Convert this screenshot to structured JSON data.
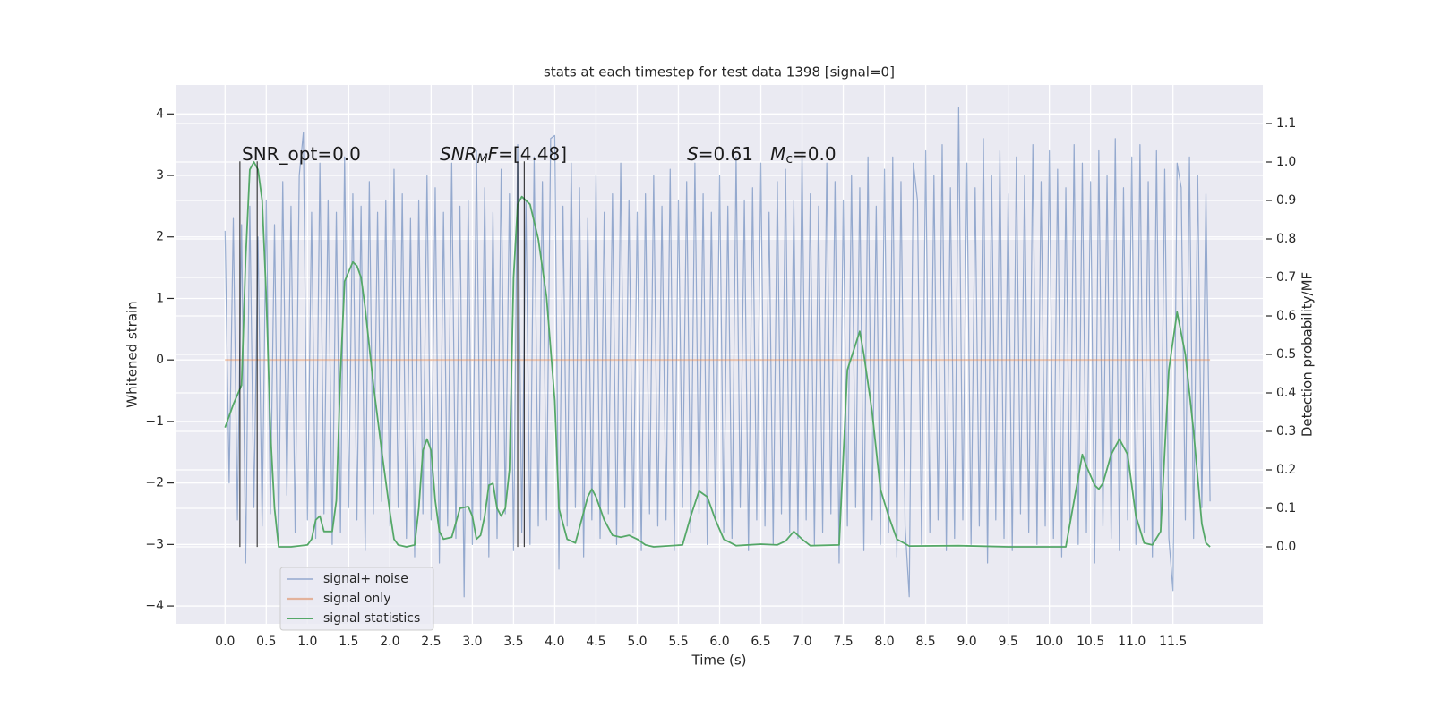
{
  "chart_data": {
    "type": "line",
    "title": "stats at each timestep for test data 1398 [signal=0]",
    "xlabel": "Time (s)",
    "ylabel": "Whitened strain",
    "y2label": "Detection probability/MF",
    "annotations": [
      {
        "parts": [
          "SNR_opt=0.0"
        ]
      },
      {
        "parts": [
          "SNR",
          "M",
          "F",
          "=[4.48]"
        ]
      },
      {
        "parts": [
          "S",
          "=0.61   ",
          "M",
          "c",
          "=0.0"
        ]
      }
    ],
    "xlim": [
      -0.59,
      12.59
    ],
    "ylim": [
      -4.29,
      4.47
    ],
    "y2lim": [
      -0.2,
      1.2
    ],
    "xticks": [
      {
        "value": 0,
        "label": "0.0"
      },
      {
        "value": 0.5,
        "label": "0.5"
      },
      {
        "value": 1,
        "label": "1.0"
      },
      {
        "value": 1.5,
        "label": "1.5"
      },
      {
        "value": 2,
        "label": "2.0"
      },
      {
        "value": 2.5,
        "label": "2.5"
      },
      {
        "value": 3,
        "label": "3.0"
      },
      {
        "value": 3.5,
        "label": "3.5"
      },
      {
        "value": 4,
        "label": "4.0"
      },
      {
        "value": 4.5,
        "label": "4.5"
      },
      {
        "value": 5,
        "label": "5.0"
      },
      {
        "value": 5.5,
        "label": "5.5"
      },
      {
        "value": 6,
        "label": "6.0"
      },
      {
        "value": 6.5,
        "label": "6.5"
      },
      {
        "value": 7,
        "label": "7.0"
      },
      {
        "value": 7.5,
        "label": "7.5"
      },
      {
        "value": 8,
        "label": "8.0"
      },
      {
        "value": 8.5,
        "label": "8.5"
      },
      {
        "value": 9,
        "label": "9.0"
      },
      {
        "value": 9.5,
        "label": "9.5"
      },
      {
        "value": 10,
        "label": "10.0"
      },
      {
        "value": 10.5,
        "label": "10.5"
      },
      {
        "value": 11,
        "label": "11.0"
      },
      {
        "value": 11.5,
        "label": "11.5"
      }
    ],
    "yticks": [
      {
        "value": -4,
        "label": "−4"
      },
      {
        "value": -3,
        "label": "−3"
      },
      {
        "value": -2,
        "label": "−2"
      },
      {
        "value": -1,
        "label": "−1"
      },
      0,
      1,
      2,
      3,
      4
    ],
    "y2ticks": [
      {
        "value": 0,
        "label": "0.0"
      },
      {
        "value": 0.1,
        "label": "0.1"
      },
      {
        "value": 0.2,
        "label": "0.2"
      },
      {
        "value": 0.3,
        "label": "0.3"
      },
      {
        "value": 0.4,
        "label": "0.4"
      },
      {
        "value": 0.5,
        "label": "0.5"
      },
      {
        "value": 0.6,
        "label": "0.6"
      },
      {
        "value": 0.7,
        "label": "0.7"
      },
      {
        "value": 0.8,
        "label": "0.8"
      },
      {
        "value": 0.9,
        "label": "0.9"
      },
      {
        "value": 1.0,
        "label": "1.0"
      },
      {
        "value": 1.1,
        "label": "1.1"
      }
    ],
    "grid": true,
    "legend": "lower left",
    "series": [
      {
        "name": "signal+ noise",
        "color": "#4c72b0",
        "x": [
          0,
          0.05,
          0.1,
          0.15,
          0.2,
          0.25,
          0.3,
          0.35,
          0.4,
          0.45,
          0.5,
          0.55,
          0.6,
          0.65,
          0.7,
          0.75,
          0.8,
          0.85,
          0.9,
          0.95,
          1,
          1.05,
          1.1,
          1.15,
          1.2,
          1.25,
          1.3,
          1.35,
          1.4,
          1.45,
          1.5,
          1.55,
          1.6,
          1.65,
          1.7,
          1.75,
          1.8,
          1.85,
          1.9,
          1.95,
          2,
          2.05,
          2.1,
          2.15,
          2.2,
          2.25,
          2.3,
          2.35,
          2.4,
          2.45,
          2.5,
          2.55,
          2.6,
          2.65,
          2.7,
          2.75,
          2.8,
          2.85,
          2.9,
          2.95,
          3,
          3.05,
          3.1,
          3.15,
          3.2,
          3.25,
          3.3,
          3.35,
          3.4,
          3.45,
          3.5,
          3.55,
          3.6,
          3.65,
          3.7,
          3.75,
          3.8,
          3.85,
          3.9,
          3.95,
          4,
          4.05,
          4.1,
          4.15,
          4.2,
          4.25,
          4.3,
          4.35,
          4.4,
          4.45,
          4.5,
          4.55,
          4.6,
          4.65,
          4.7,
          4.75,
          4.8,
          4.85,
          4.9,
          4.95,
          5,
          5.05,
          5.1,
          5.15,
          5.2,
          5.25,
          5.3,
          5.35,
          5.4,
          5.45,
          5.5,
          5.55,
          5.6,
          5.65,
          5.7,
          5.75,
          5.8,
          5.85,
          5.9,
          5.95,
          6,
          6.05,
          6.1,
          6.15,
          6.2,
          6.25,
          6.3,
          6.35,
          6.4,
          6.45,
          6.5,
          6.55,
          6.6,
          6.65,
          6.7,
          6.75,
          6.8,
          6.85,
          6.9,
          6.95,
          7,
          7.05,
          7.1,
          7.15,
          7.2,
          7.25,
          7.3,
          7.35,
          7.4,
          7.45,
          7.5,
          7.55,
          7.6,
          7.65,
          7.7,
          7.75,
          7.8,
          7.85,
          7.9,
          7.95,
          8,
          8.05,
          8.1,
          8.15,
          8.2,
          8.25,
          8.3,
          8.35,
          8.4,
          8.45,
          8.5,
          8.55,
          8.6,
          8.65,
          8.7,
          8.75,
          8.8,
          8.85,
          8.9,
          8.95,
          9,
          9.05,
          9.1,
          9.15,
          9.2,
          9.25,
          9.3,
          9.35,
          9.4,
          9.45,
          9.5,
          9.55,
          9.6,
          9.65,
          9.7,
          9.75,
          9.8,
          9.85,
          9.9,
          9.95,
          10,
          10.05,
          10.1,
          10.15,
          10.2,
          10.25,
          10.3,
          10.35,
          10.4,
          10.45,
          10.5,
          10.55,
          10.6,
          10.65,
          10.7,
          10.75,
          10.8,
          10.85,
          10.9,
          10.95,
          11,
          11.05,
          11.1,
          11.15,
          11.2,
          11.25,
          11.3,
          11.35,
          11.4,
          11.45,
          11.5,
          11.55,
          11.6,
          11.65,
          11.7,
          11.75,
          11.8,
          11.85,
          11.9,
          11.95
        ],
        "values": [
          2.1,
          -2.0,
          2.3,
          -2.6,
          2.2,
          -3.3,
          2.5,
          -2.4,
          2.0,
          -2.7,
          2.6,
          -2.5,
          2.2,
          -3.0,
          2.9,
          -2.2,
          2.5,
          -2.8,
          3.0,
          3.7,
          -2.6,
          2.4,
          -2.9,
          3.2,
          -2.5,
          2.6,
          -3.0,
          2.4,
          -2.8,
          3.3,
          -2.4,
          2.7,
          -2.6,
          2.5,
          -3.1,
          2.9,
          -2.5,
          2.4,
          -2.3,
          2.6,
          -2.7,
          3.1,
          -2.4,
          2.7,
          -2.9,
          2.3,
          -3.2,
          2.6,
          -2.5,
          3.0,
          -2.6,
          2.8,
          -3.3,
          2.4,
          -2.7,
          3.2,
          -2.9,
          2.5,
          -3.85,
          2.6,
          -3.0,
          3.4,
          -2.6,
          2.8,
          -3.2,
          2.4,
          -2.9,
          3.1,
          -2.5,
          2.7,
          -3.1,
          3.5,
          -2.8,
          2.6,
          -3.0,
          3.3,
          -2.7,
          2.9,
          -2.6,
          3.6,
          3.65,
          -3.4,
          2.5,
          -2.7,
          3.2,
          -2.4,
          2.8,
          -3.2,
          2.3,
          -2.6,
          3.0,
          -2.9,
          2.4,
          -2.5,
          2.7,
          -3.0,
          3.2,
          -2.4,
          2.6,
          -2.8,
          2.4,
          -3.1,
          2.7,
          -2.5,
          3.0,
          -2.7,
          2.5,
          -2.6,
          3.1,
          -3.1,
          2.6,
          -2.4,
          2.9,
          -2.8,
          3.2,
          -2.5,
          2.7,
          -3.0,
          2.4,
          -2.6,
          3.0,
          -2.8,
          2.5,
          -2.9,
          3.3,
          -2.4,
          2.6,
          -3.1,
          2.8,
          -2.6,
          3.2,
          -2.7,
          2.4,
          -3.0,
          2.9,
          -2.5,
          3.1,
          -2.8,
          2.6,
          -2.9,
          3.4,
          -2.6,
          2.7,
          -3.0,
          2.5,
          -2.8,
          3.2,
          -2.5,
          2.9,
          -3.3,
          2.6,
          -2.7,
          3.0,
          -2.4,
          2.8,
          -3.1,
          3.3,
          -2.6,
          2.5,
          -3.0,
          3.1,
          -2.8,
          3.3,
          -3.2,
          2.9,
          -2.7,
          -3.85,
          3.2,
          2.6,
          -3.0,
          3.4,
          -2.8,
          3.0,
          -2.6,
          3.5,
          -3.1,
          2.8,
          -2.9,
          4.1,
          -2.6,
          3.2,
          -3.0,
          2.8,
          -2.7,
          3.6,
          -3.3,
          3.0,
          -2.6,
          3.4,
          -2.9,
          2.7,
          -3.1,
          3.3,
          -2.5,
          3.0,
          -2.8,
          3.5,
          -3.0,
          2.9,
          -2.7,
          3.4,
          -2.9,
          3.1,
          -3.2,
          2.8,
          -2.6,
          3.5,
          -3.0,
          3.2,
          -2.8,
          2.9,
          -3.3,
          3.4,
          -2.7,
          3.0,
          -2.9,
          3.6,
          -3.1,
          2.8,
          -2.6,
          3.3,
          -3.0,
          3.5,
          -2.8,
          2.9,
          -3.2,
          3.4,
          -2.7,
          3.1,
          -2.9,
          -3.75,
          3.2,
          2.8,
          -2.6,
          3.3,
          -2.9,
          3.0,
          -2.4,
          2.7,
          -2.3
        ]
      },
      {
        "name": "signal only",
        "color": "#dd8452",
        "x": [
          0,
          11.95
        ],
        "values": [
          0,
          0
        ]
      },
      {
        "name": "signal statistics",
        "color": "#55a868",
        "axis": "y2",
        "x": [
          0,
          0.1,
          0.2,
          0.25,
          0.3,
          0.35,
          0.4,
          0.45,
          0.5,
          0.55,
          0.6,
          0.65,
          0.8,
          1.0,
          1.05,
          1.1,
          1.15,
          1.2,
          1.3,
          1.35,
          1.4,
          1.45,
          1.55,
          1.6,
          1.65,
          1.7,
          1.8,
          1.9,
          2.0,
          2.05,
          2.1,
          2.2,
          2.3,
          2.35,
          2.4,
          2.45,
          2.5,
          2.55,
          2.6,
          2.65,
          2.75,
          2.85,
          2.95,
          3.0,
          3.05,
          3.1,
          3.15,
          3.2,
          3.25,
          3.3,
          3.35,
          3.4,
          3.45,
          3.5,
          3.55,
          3.6,
          3.7,
          3.8,
          3.9,
          4.0,
          4.05,
          4.15,
          4.25,
          4.3,
          4.4,
          4.45,
          4.5,
          4.6,
          4.7,
          4.8,
          4.9,
          5.0,
          5.1,
          5.2,
          5.55,
          5.65,
          5.75,
          5.85,
          5.95,
          6.05,
          6.2,
          6.5,
          6.7,
          6.8,
          6.9,
          7.0,
          7.1,
          7.45,
          7.55,
          7.7,
          7.75,
          7.85,
          7.95,
          8.05,
          8.15,
          8.3,
          8.9,
          9.5,
          10.2,
          10.25,
          10.35,
          10.4,
          10.45,
          10.55,
          10.6,
          10.65,
          10.75,
          10.85,
          10.95,
          11.05,
          11.15,
          11.25,
          11.35,
          11.45,
          11.55,
          11.65,
          11.75,
          11.85,
          11.9,
          11.95
        ],
        "values": [
          0.31,
          0.37,
          0.42,
          0.75,
          0.98,
          1.0,
          0.98,
          0.9,
          0.65,
          0.3,
          0.1,
          0.0,
          0.0,
          0.005,
          0.02,
          0.07,
          0.08,
          0.04,
          0.04,
          0.12,
          0.45,
          0.69,
          0.74,
          0.73,
          0.7,
          0.62,
          0.42,
          0.25,
          0.09,
          0.02,
          0.005,
          0.0,
          0.005,
          0.1,
          0.25,
          0.28,
          0.25,
          0.12,
          0.04,
          0.02,
          0.025,
          0.1,
          0.105,
          0.08,
          0.02,
          0.03,
          0.08,
          0.16,
          0.165,
          0.1,
          0.08,
          0.1,
          0.2,
          0.7,
          0.89,
          0.91,
          0.89,
          0.8,
          0.65,
          0.38,
          0.1,
          0.02,
          0.01,
          0.05,
          0.13,
          0.15,
          0.13,
          0.07,
          0.03,
          0.025,
          0.03,
          0.02,
          0.005,
          0.0,
          0.005,
          0.08,
          0.145,
          0.13,
          0.07,
          0.02,
          0.003,
          0.007,
          0.005,
          0.015,
          0.04,
          0.02,
          0.003,
          0.005,
          0.46,
          0.56,
          0.5,
          0.35,
          0.15,
          0.08,
          0.02,
          0.002,
          0.003,
          0.0,
          0.0,
          0.06,
          0.18,
          0.24,
          0.21,
          0.16,
          0.15,
          0.165,
          0.24,
          0.28,
          0.24,
          0.08,
          0.01,
          0.005,
          0.04,
          0.46,
          0.61,
          0.5,
          0.3,
          0.06,
          0.01,
          0.0
        ]
      }
    ],
    "vlines": {
      "color": "#000000",
      "x": [
        0.18,
        0.39,
        3.55,
        3.63
      ],
      "ymin": [
        -3.04,
        -3.04,
        -3.04,
        -3.04
      ],
      "ymax": [
        3.23,
        3.23,
        3.23,
        3.23
      ]
    }
  }
}
